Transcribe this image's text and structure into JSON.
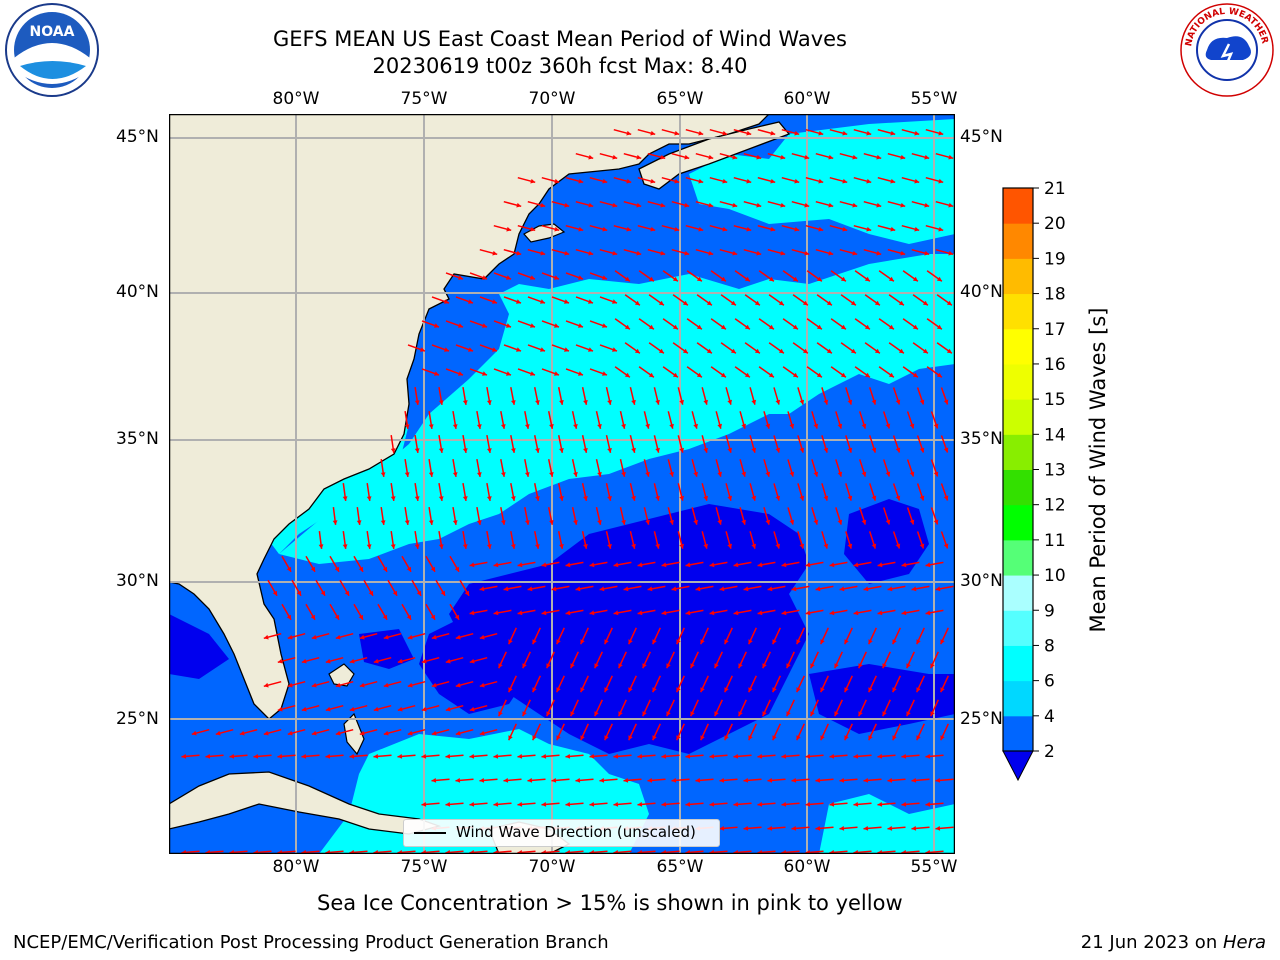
{
  "header": {
    "title_line1": "GEFS MEAN US East Coast Mean Period of Wind Waves",
    "title_line2": "20230619 t00z 360h fcst   Max: 8.40"
  },
  "logos": {
    "noaa": "NOAA",
    "nws": "NATIONAL WEATHER SERVICE"
  },
  "map": {
    "lon_labels": [
      "80°W",
      "75°W",
      "70°W",
      "65°W",
      "60°W",
      "55°W"
    ],
    "lat_labels": [
      "45°N",
      "40°N",
      "35°N",
      "30°N",
      "25°N"
    ],
    "lon_range": [
      -85,
      -54
    ],
    "lat_range": [
      20,
      46
    ],
    "legend_label": "Wind Wave Direction (unscaled)",
    "colors": {
      "land": "#efecd9",
      "coast": "#000000",
      "grid": "#b0b0b0",
      "arrow": "#ff0000"
    }
  },
  "colorbar": {
    "label": "Mean Period of Wind Waves [s]",
    "ticks": [
      "2",
      "4",
      "6",
      "8",
      "9",
      "10",
      "11",
      "12",
      "13",
      "14",
      "15",
      "16",
      "17",
      "18",
      "19",
      "20",
      "21"
    ],
    "colors": [
      "#0066ff",
      "#00d8ff",
      "#00ffff",
      "#55ffff",
      "#aaffff",
      "#55ff77",
      "#00ff00",
      "#33e000",
      "#88ee00",
      "#ccff00",
      "#eeff00",
      "#ffff00",
      "#ffe000",
      "#ffbb00",
      "#ff8800",
      "#ff5500",
      "#ff2200",
      "#ff0000"
    ],
    "extend_color": "#0000ee"
  },
  "footer": {
    "note": "Sea Ice Concentration > 15% is shown in pink to yellow",
    "credit_left": "NCEP/EMC/Verification Post Processing Product Generation Branch",
    "credit_date": "21 Jun 2023 on ",
    "credit_host": "Hera"
  }
}
